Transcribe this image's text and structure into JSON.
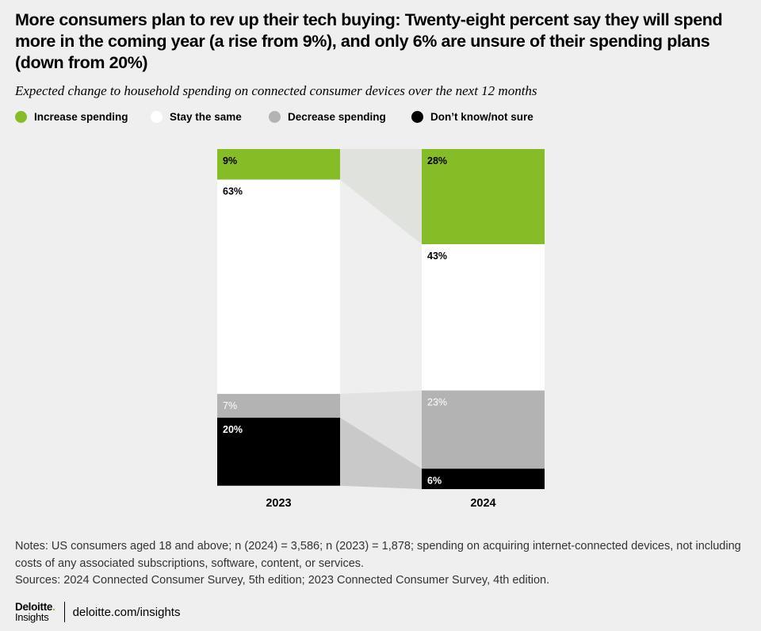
{
  "title": "More consumers plan to rev up their tech buying: Twenty-eight percent say they will spend more in the coming year (a rise from 9%), and only 6% are unsure of their spending plans (down from 20%)",
  "subtitle": "Expected change to household spending on connected consumer devices over the next 12 months",
  "legend": [
    {
      "label": "Increase spending",
      "color": "#86bc25"
    },
    {
      "label": "Stay the same",
      "color": "#ffffff"
    },
    {
      "label": "Decrease spending",
      "color": "#b3b3b3"
    },
    {
      "label": "Don’t know/not sure",
      "color": "#000000"
    }
  ],
  "chart_data": {
    "type": "bar",
    "stacked": true,
    "normalized_100": true,
    "categories": [
      "2023",
      "2024"
    ],
    "series": [
      {
        "name": "Increase spending",
        "values": [
          9,
          28
        ],
        "labels": [
          "9%",
          "28%"
        ],
        "color": "#86bc25"
      },
      {
        "name": "Stay the same",
        "values": [
          63,
          43
        ],
        "labels": [
          "63%",
          "43%"
        ],
        "color": "#ffffff"
      },
      {
        "name": "Decrease spending",
        "values": [
          7,
          23
        ],
        "labels": [
          "7%",
          "23%"
        ],
        "color": "#b3b3b3"
      },
      {
        "name": "Don’t know/not sure",
        "values": [
          20,
          6
        ],
        "labels": [
          "20%",
          "6%"
        ],
        "color": "#000000"
      }
    ],
    "connectors": [
      "Increase spending",
      "Decrease spending",
      "Don’t know/not sure"
    ]
  },
  "notes": "Notes: US consumers aged 18 and above; n (2024) = 3,586; n (2023) = 1,878; spending on acquiring internet-connected devices, not including costs of any associated subscriptions, software, content, or services.",
  "sources": "Sources: 2024 Connected Consumer Survey, 5th edition; 2023 Connected Consumer Survey, 4th edition.",
  "footer": {
    "logo_top": "Deloitte",
    "logo_dot": ".",
    "logo_bottom": "Insights",
    "url": "deloitte.com/insights"
  }
}
